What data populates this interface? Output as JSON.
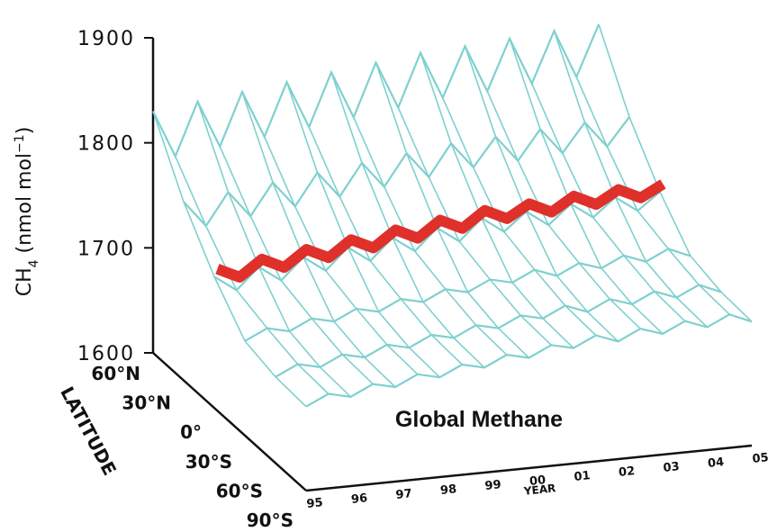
{
  "chart_data": {
    "type": "surface",
    "title": "Global Methane",
    "y_label_parts": [
      "CH",
      "4",
      " (nmol mol",
      "−1",
      ")"
    ],
    "lat_label": "LATITUDE",
    "year_label": "YEAR",
    "year_categories": [
      "95",
      "96",
      "97",
      "98",
      "99",
      "00",
      "01",
      "02",
      "03",
      "04",
      "05"
    ],
    "lat_categories": [
      "60°N",
      "30°N",
      "0°",
      "30°S",
      "60°S",
      "90°S"
    ],
    "ylim": [
      1600,
      1900
    ],
    "yticks": [
      1600,
      1700,
      1800,
      1900
    ],
    "surface_color": "#7fd0d0",
    "global_color": "#e0302a",
    "z": [
      [
        1830,
        1785,
        1835,
        1790,
        1840,
        1795,
        1845,
        1800,
        1850,
        1805,
        1855,
        1810,
        1860,
        1815,
        1862,
        1817,
        1865,
        1820,
        1868,
        1822,
        1870
      ],
      [
        1770,
        1745,
        1775,
        1750,
        1780,
        1755,
        1785,
        1760,
        1790,
        1765,
        1795,
        1770,
        1800,
        1775,
        1802,
        1777,
        1805,
        1780,
        1807,
        1782,
        1808
      ],
      [
        1725,
        1710,
        1730,
        1715,
        1735,
        1720,
        1740,
        1725,
        1745,
        1730,
        1750,
        1735,
        1755,
        1740,
        1757,
        1742,
        1760,
        1745,
        1762,
        1747,
        1763
      ],
      [
        1690,
        1700,
        1695,
        1705,
        1700,
        1710,
        1705,
        1715,
        1710,
        1720,
        1715,
        1725,
        1720,
        1730,
        1722,
        1732,
        1725,
        1735,
        1727,
        1737,
        1728
      ],
      [
        1682,
        1692,
        1687,
        1697,
        1692,
        1702,
        1697,
        1707,
        1702,
        1712,
        1707,
        1717,
        1712,
        1722,
        1714,
        1724,
        1717,
        1727,
        1719,
        1729,
        1720
      ],
      [
        1680,
        1690,
        1685,
        1695,
        1690,
        1700,
        1695,
        1705,
        1700,
        1710,
        1705,
        1715,
        1710,
        1720,
        1712,
        1722,
        1715,
        1725,
        1717,
        1727,
        1718
      ]
    ],
    "global_values": [
      1735,
      1725,
      1740,
      1730,
      1745,
      1735,
      1750,
      1740,
      1755,
      1745,
      1760,
      1750,
      1765,
      1755,
      1767,
      1757,
      1770,
      1760,
      1772,
      1762,
      1773
    ]
  }
}
